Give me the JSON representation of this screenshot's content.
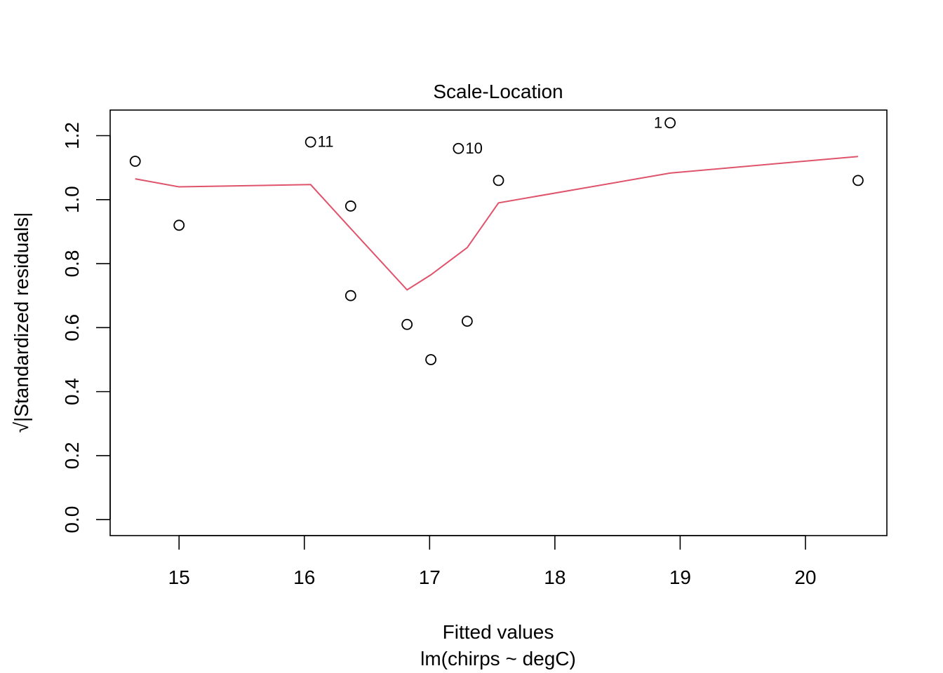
{
  "chart_data": {
    "type": "scatter",
    "title": "Scale-Location",
    "xlabel": "Fitted values",
    "xlabel_sub": "lm(chirps ~ degC)",
    "ylabel": "√|Standardized residuals|",
    "xlim": [
      14.45,
      20.65
    ],
    "ylim": [
      -0.05,
      1.28
    ],
    "x_ticks": [
      15,
      16,
      17,
      18,
      19,
      20
    ],
    "y_ticks": [
      0.0,
      0.2,
      0.4,
      0.6,
      0.8,
      1.0,
      1.2
    ],
    "y_tick_labels": [
      "0.0",
      "0.2",
      "0.4",
      "0.6",
      "0.8",
      "1.0",
      "1.2"
    ],
    "grid": false,
    "points": [
      {
        "x": 14.65,
        "y": 1.12,
        "label": ""
      },
      {
        "x": 15.0,
        "y": 0.92,
        "label": ""
      },
      {
        "x": 16.05,
        "y": 1.18,
        "label": "11"
      },
      {
        "x": 16.37,
        "y": 0.98,
        "label": ""
      },
      {
        "x": 16.37,
        "y": 0.7,
        "label": ""
      },
      {
        "x": 16.82,
        "y": 0.61,
        "label": ""
      },
      {
        "x": 17.01,
        "y": 0.5,
        "label": ""
      },
      {
        "x": 17.23,
        "y": 1.16,
        "label": "10"
      },
      {
        "x": 17.3,
        "y": 0.62,
        "label": ""
      },
      {
        "x": 17.55,
        "y": 1.06,
        "label": ""
      },
      {
        "x": 18.92,
        "y": 1.24,
        "label": "1"
      },
      {
        "x": 20.42,
        "y": 1.06,
        "label": ""
      }
    ],
    "smooth_line": {
      "color": "#DF536B",
      "x": [
        14.65,
        15.0,
        16.05,
        16.37,
        16.82,
        17.01,
        17.3,
        17.55,
        18.92,
        20.42
      ],
      "y": [
        1.065,
        1.04,
        1.047,
        0.91,
        0.718,
        0.765,
        0.85,
        0.99,
        1.083,
        1.135
      ]
    }
  }
}
